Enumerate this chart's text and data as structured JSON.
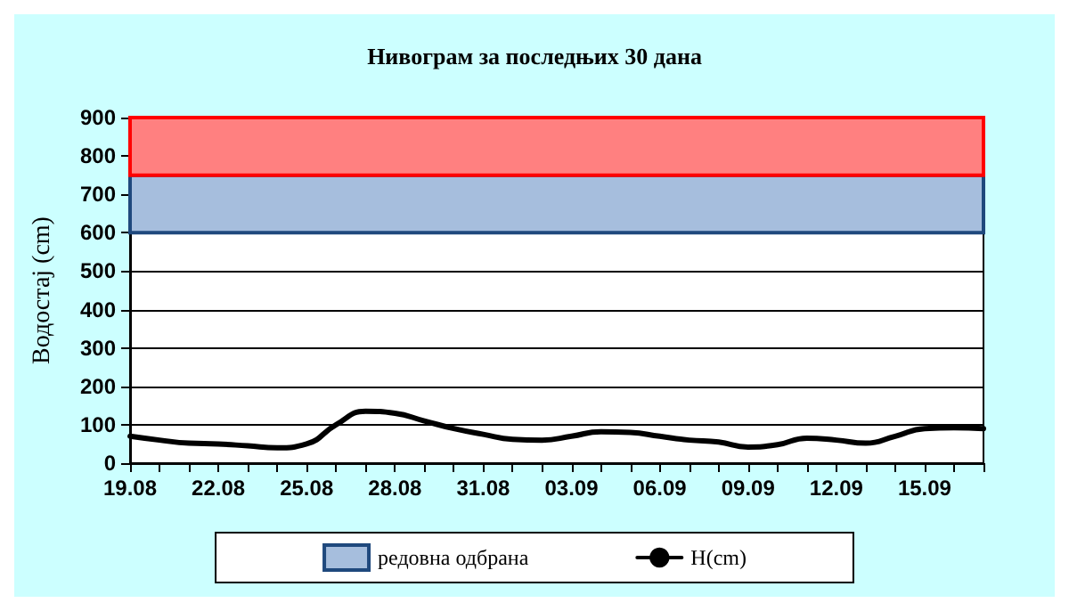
{
  "chart_data": {
    "type": "line",
    "title": "Нивограм за последњих 30 дана",
    "ylabel": "Водостај (cm)",
    "categories": [
      "19.08",
      null,
      null,
      "22.08",
      null,
      null,
      "25.08",
      null,
      null,
      "28.08",
      null,
      null,
      "31.08",
      null,
      null,
      "03.09",
      null,
      null,
      "06.09",
      null,
      null,
      "09.09",
      null,
      null,
      "12.09",
      null,
      null,
      "15.09",
      null,
      null
    ],
    "series": [
      {
        "name": "H(cm)",
        "color": "#000000",
        "values": [
          70,
          60,
          52,
          50,
          45,
          40,
          50,
          100,
          135,
          130,
          110,
          90,
          75,
          62,
          60,
          70,
          82,
          80,
          70,
          60,
          55,
          42,
          48,
          65,
          60,
          52,
          70,
          90,
          92,
          90
        ]
      }
    ],
    "ylim": [
      0,
      900
    ],
    "yticks": [
      0,
      100,
      200,
      300,
      400,
      500,
      600,
      700,
      800,
      900
    ],
    "grid": "y",
    "legend": "bottom",
    "marker": "none",
    "line_style": "solid",
    "bands": [
      {
        "axis": "y",
        "from": 600,
        "to": 750,
        "label": "редовна одбрана",
        "color": "#a6bedd"
      },
      {
        "axis": "y",
        "from": 750,
        "to": 900,
        "color": "#ff8080"
      }
    ]
  }
}
